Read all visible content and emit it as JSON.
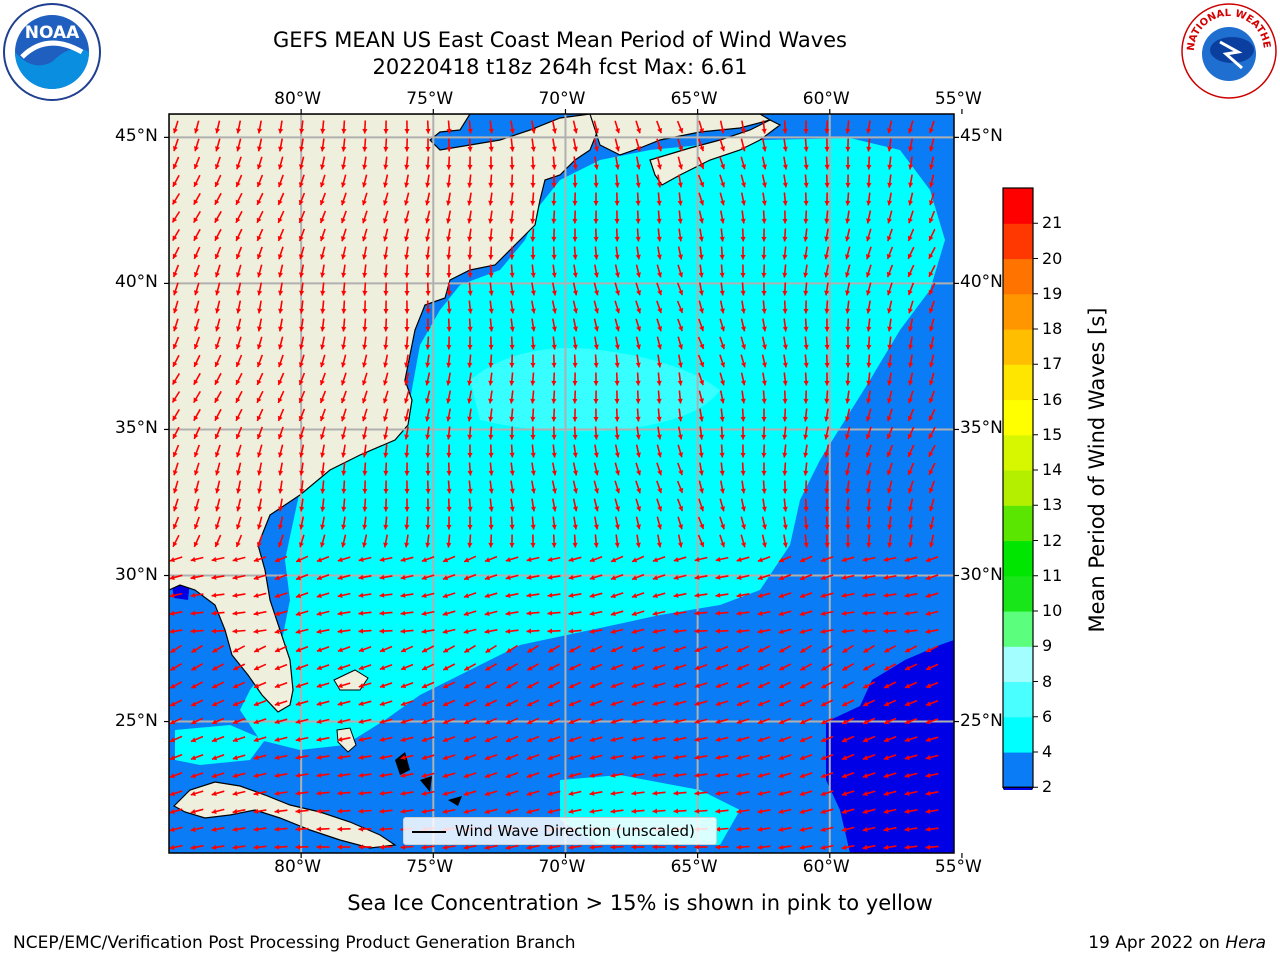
{
  "title": {
    "line1": "GEFS MEAN US East Coast Mean Period of Wind Waves",
    "line2": "20220418 t18z 264h fcst   Max: 6.61"
  },
  "map": {
    "lon_labels": [
      "80°W",
      "75°W",
      "70°W",
      "65°W",
      "60°W",
      "55°W"
    ],
    "lat_labels": [
      "45°N",
      "40°N",
      "35°N",
      "30°N",
      "25°N"
    ],
    "extent": {
      "lon_min": -85,
      "lon_max": -55.3,
      "lat_min": 20.5,
      "lat_max": 45.8
    },
    "colors": {
      "land": "#efefde",
      "ocean_2_4": "#0a7cf6",
      "ocean_4_6": "#00ffff",
      "ocean_lt2": "#0000e6",
      "arrow": "#ff0000",
      "grid": "#b0b0b0"
    }
  },
  "legend": {
    "label": "Wind Wave Direction (unscaled)"
  },
  "colorbar": {
    "title": "Mean Period of Wind Waves [s]",
    "ticks": [
      "2",
      "4",
      "6",
      "8",
      "9",
      "10",
      "11",
      "12",
      "13",
      "14",
      "15",
      "16",
      "17",
      "18",
      "19",
      "20",
      "21"
    ],
    "colors": [
      "#0a7cf6",
      "#00ffff",
      "#49ffff",
      "#a3ffff",
      "#5bff7d",
      "#19e619",
      "#00e600",
      "#5ae600",
      "#b4ef00",
      "#d7f700",
      "#ffff00",
      "#ffe600",
      "#ffbe00",
      "#ff9600",
      "#ff7300",
      "#ff3700",
      "#ff0000"
    ],
    "extend_color": "#0000e6"
  },
  "note": "Sea Ice Concentration > 15% is shown in pink to yellow",
  "footer": {
    "left": "NCEP/EMC/Verification Post Processing Product Generation Branch",
    "right_prefix": "19 Apr 2022 on ",
    "right_host": "Hera"
  },
  "logos": {
    "noaa_text": "NOAA",
    "nws_text": "NATIONAL WEATHER SERVICE"
  }
}
